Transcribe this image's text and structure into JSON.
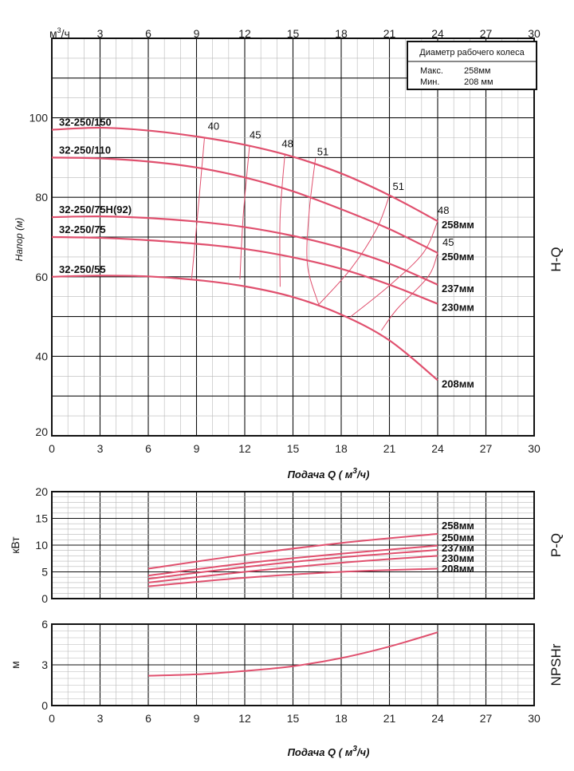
{
  "x_axis": {
    "label": "Подача Q ( м³/ч)",
    "label_prefix": "Подача Q ( м",
    "label_exp": "3",
    "label_suffix": "/ч)",
    "unit_top": "м³/ч",
    "unit_top_base": "м",
    "unit_top_exp": "3",
    "unit_top_suffix": "/ч",
    "ticks": [
      0,
      3,
      6,
      9,
      12,
      15,
      18,
      21,
      24,
      27,
      30
    ]
  },
  "legend": {
    "title": "Диаметр рабочего колеса",
    "max_label": "Макс.",
    "max_value": "258мм",
    "min_label": "Мин.",
    "min_value": "208 мм"
  },
  "colors": {
    "curve": "#e0506e",
    "grid_major": "#111111",
    "grid_minor": "#b8b8b8"
  },
  "chart_data": [
    {
      "name": "H-Q",
      "type": "line",
      "side_label": "H-Q",
      "ylabel": "Напор (м)",
      "xlim": [
        0,
        30
      ],
      "ylim": [
        20,
        120
      ],
      "yticks": [
        20,
        40,
        60,
        80,
        100
      ],
      "series": [
        {
          "name": "258мм",
          "model": "32-250/150",
          "x": [
            0,
            3,
            6,
            9,
            12,
            15,
            18,
            21,
            24
          ],
          "y": [
            97,
            97.5,
            96.8,
            95.3,
            93.2,
            90.2,
            86,
            80.5,
            74
          ]
        },
        {
          "name": "250мм",
          "model": "32-250/110",
          "x": [
            0,
            3,
            6,
            9,
            12,
            15,
            18,
            21,
            24
          ],
          "y": [
            90,
            89.8,
            89,
            87.5,
            85,
            81.5,
            77,
            72,
            66
          ]
        },
        {
          "name": "237мм",
          "model": "32-250/75H(92)",
          "x": [
            0,
            3,
            6,
            9,
            12,
            15,
            18,
            21,
            24
          ],
          "y": [
            75,
            75.2,
            74.8,
            73.9,
            72.5,
            70.3,
            67.3,
            63.3,
            58
          ]
        },
        {
          "name": "230мм",
          "model": "32-250/75",
          "x": [
            0,
            3,
            6,
            9,
            12,
            15,
            18,
            21,
            24
          ],
          "y": [
            70,
            69.8,
            69.2,
            68.3,
            67,
            64.9,
            62,
            58,
            53.2
          ]
        },
        {
          "name": "208мм",
          "model": "32-250/55",
          "x": [
            0,
            3,
            6,
            9,
            12,
            15,
            18,
            21,
            24
          ],
          "y": [
            60,
            60.3,
            60.1,
            59.2,
            57.6,
            54.9,
            50.5,
            44,
            34
          ]
        }
      ],
      "efficiency_lines": [
        {
          "label": "40",
          "x": [
            9.5,
            9.1,
            8.7
          ],
          "y": [
            95.2,
            77,
            59.6
          ]
        },
        {
          "label": "45",
          "x": [
            12.3,
            11.9,
            11.7
          ],
          "y": [
            93,
            75,
            59.4
          ]
        },
        {
          "label": "48",
          "x": [
            14.5,
            14.2,
            14.2
          ],
          "y": [
            91,
            75,
            57.5
          ]
        },
        {
          "label": "51",
          "x": [
            16.4,
            16,
            15.9,
            16.6
          ],
          "y": [
            89.8,
            76,
            63,
            53
          ]
        },
        {
          "label": "51",
          "x": [
            21,
            20.2,
            18.6,
            16.6
          ],
          "y": [
            80.5,
            72,
            62,
            53
          ]
        },
        {
          "label": "48",
          "x": [
            24,
            23.1,
            21,
            18.6
          ],
          "y": [
            74,
            66,
            57.8,
            50
          ]
        },
        {
          "label": "45",
          "x": [
            24,
            23.4,
            21.5,
            20.5
          ],
          "y": [
            66,
            60,
            52,
            46.5
          ]
        }
      ],
      "efficiency_label_positions": [
        {
          "label": "40",
          "x": 9.7,
          "y": 97
        },
        {
          "label": "45",
          "x": 12.3,
          "y": 94.8
        },
        {
          "label": "48",
          "x": 14.3,
          "y": 92.6
        },
        {
          "label": "51",
          "x": 16.5,
          "y": 90.6
        },
        {
          "label": "51",
          "x": 21.2,
          "y": 81.8
        },
        {
          "label": "48",
          "x": 24,
          "y": 75.8
        },
        {
          "label": "45",
          "x": 24.3,
          "y": 67.8
        }
      ]
    },
    {
      "name": "P-Q",
      "type": "line",
      "side_label": "P-Q",
      "ylabel": "кВт",
      "xlim": [
        0,
        30
      ],
      "ylim": [
        0,
        20
      ],
      "yticks": [
        0,
        5,
        10,
        15,
        20
      ],
      "series": [
        {
          "name": "258мм",
          "x": [
            6,
            12,
            18,
            24
          ],
          "y": [
            5.6,
            8.2,
            10.4,
            12.1
          ]
        },
        {
          "name": "250мм",
          "x": [
            6,
            12,
            18,
            24
          ],
          "y": [
            4.3,
            6.6,
            8.4,
            9.9
          ]
        },
        {
          "name": "237мм",
          "x": [
            6,
            12,
            18,
            24
          ],
          "y": [
            3.7,
            5.9,
            7.7,
            9.1
          ]
        },
        {
          "name": "230мм",
          "x": [
            6,
            12,
            18,
            24
          ],
          "y": [
            3,
            5,
            6.7,
            8
          ]
        },
        {
          "name": "208мм",
          "x": [
            6,
            12,
            18,
            24
          ],
          "y": [
            2.3,
            3.9,
            5,
            5.6
          ]
        }
      ]
    },
    {
      "name": "NPSHr",
      "type": "line",
      "side_label": "NPSHr",
      "ylabel": "м",
      "xlim": [
        0,
        30
      ],
      "ylim": [
        0,
        6
      ],
      "yticks": [
        0,
        3,
        6
      ],
      "series": [
        {
          "name": "NPSHr",
          "x": [
            6,
            9,
            12,
            15,
            18,
            21,
            24
          ],
          "y": [
            2.2,
            2.3,
            2.55,
            2.9,
            3.5,
            4.35,
            5.4
          ]
        }
      ]
    }
  ]
}
